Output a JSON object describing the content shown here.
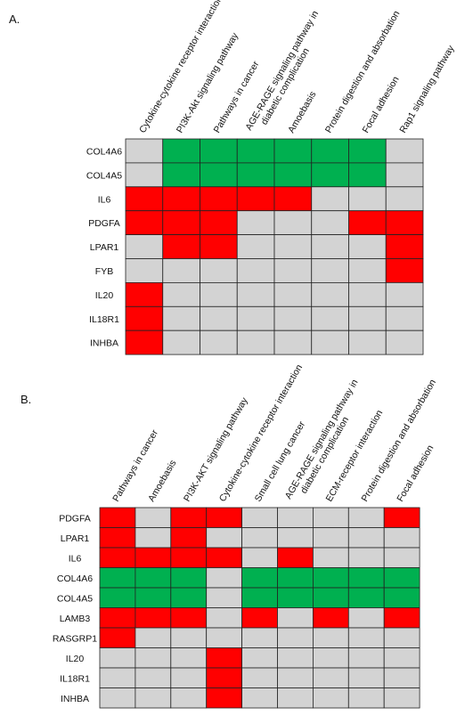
{
  "colors": {
    "red": "#ff0000",
    "green": "#00b050",
    "gray": "#d3d3d3",
    "border": "#222222"
  },
  "chart_data": [
    {
      "type": "heatmap",
      "panel_label": "A.",
      "columns": [
        [
          "Cytokine-cytokine receptor interaction"
        ],
        [
          "PI3K-Akt signaling pathway"
        ],
        [
          "Pathways in cancer"
        ],
        [
          "AGE-RAGE signaling pathway in",
          "diabetic complication"
        ],
        [
          "Amoebasis"
        ],
        [
          "Protein digestion and absorbation"
        ],
        [
          "Focal adhesion"
        ],
        [
          "Rap1 signaling pathway"
        ]
      ],
      "rows": [
        "COL4A6",
        "COL4A5",
        "IL6",
        "PDGFA",
        "LPAR1",
        "FYB",
        "IL20",
        "IL18R1",
        "INHBA"
      ],
      "cells": [
        [
          "gray",
          "green",
          "green",
          "green",
          "green",
          "green",
          "green",
          "gray"
        ],
        [
          "gray",
          "green",
          "green",
          "green",
          "green",
          "green",
          "green",
          "gray"
        ],
        [
          "red",
          "red",
          "red",
          "red",
          "red",
          "gray",
          "gray",
          "gray"
        ],
        [
          "red",
          "red",
          "red",
          "gray",
          "gray",
          "gray",
          "red",
          "red"
        ],
        [
          "gray",
          "red",
          "red",
          "gray",
          "gray",
          "gray",
          "gray",
          "red"
        ],
        [
          "gray",
          "gray",
          "gray",
          "gray",
          "gray",
          "gray",
          "gray",
          "red"
        ],
        [
          "red",
          "gray",
          "gray",
          "gray",
          "gray",
          "gray",
          "gray",
          "gray"
        ],
        [
          "red",
          "gray",
          "gray",
          "gray",
          "gray",
          "gray",
          "gray",
          "gray"
        ],
        [
          "red",
          "gray",
          "gray",
          "gray",
          "gray",
          "gray",
          "gray",
          "gray"
        ]
      ]
    },
    {
      "type": "heatmap",
      "panel_label": "B.",
      "columns": [
        [
          "Pathways in cancer"
        ],
        [
          "Amoebasis"
        ],
        [
          "PI3K-AKT signaling pathway"
        ],
        [
          "Cytokine-cytokine receptor  interaction"
        ],
        [
          "Small cell lung cancer"
        ],
        [
          "AGE-RAGE signaling pathway in",
          "diabetic complication"
        ],
        [
          "ECM-receptor interaction"
        ],
        [
          "Protein digestion and absorbation"
        ],
        [
          "Focal adhesion"
        ]
      ],
      "rows": [
        "PDGFA",
        "LPAR1",
        "IL6",
        "COL4A6",
        "COL4A5",
        "LAMB3",
        "RASGRP1",
        "IL20",
        "IL18R1",
        "INHBA"
      ],
      "cells": [
        [
          "red",
          "gray",
          "red",
          "red",
          "gray",
          "gray",
          "gray",
          "gray",
          "red"
        ],
        [
          "red",
          "gray",
          "red",
          "gray",
          "gray",
          "gray",
          "gray",
          "gray",
          "gray"
        ],
        [
          "red",
          "red",
          "red",
          "red",
          "gray",
          "red",
          "gray",
          "gray",
          "gray"
        ],
        [
          "green",
          "green",
          "green",
          "gray",
          "green",
          "green",
          "green",
          "green",
          "green"
        ],
        [
          "green",
          "green",
          "green",
          "gray",
          "green",
          "green",
          "green",
          "green",
          "green"
        ],
        [
          "red",
          "red",
          "red",
          "gray",
          "red",
          "gray",
          "red",
          "gray",
          "red"
        ],
        [
          "red",
          "gray",
          "gray",
          "gray",
          "gray",
          "gray",
          "gray",
          "gray",
          "gray"
        ],
        [
          "gray",
          "gray",
          "gray",
          "red",
          "gray",
          "gray",
          "gray",
          "gray",
          "gray"
        ],
        [
          "gray",
          "gray",
          "gray",
          "red",
          "gray",
          "gray",
          "gray",
          "gray",
          "gray"
        ],
        [
          "gray",
          "gray",
          "gray",
          "red",
          "gray",
          "gray",
          "gray",
          "gray",
          "gray"
        ]
      ]
    }
  ]
}
